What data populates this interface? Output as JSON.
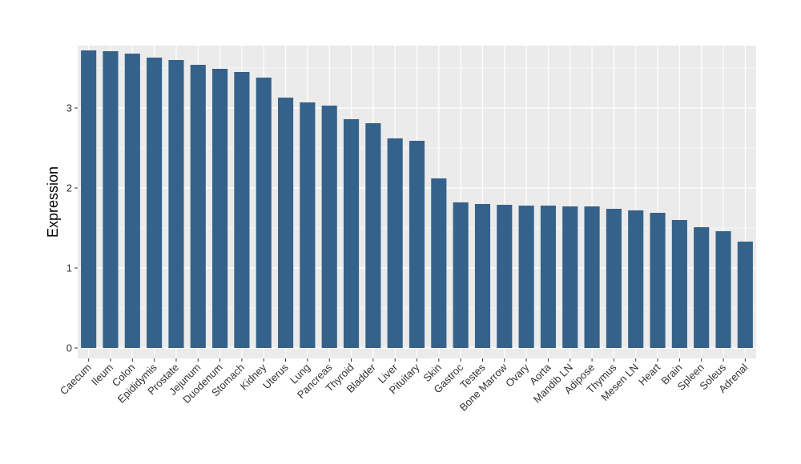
{
  "chart_data": {
    "type": "bar",
    "title": "",
    "xlabel": "",
    "ylabel": "Expression",
    "ylim": [
      -0.13,
      3.78
    ],
    "yticks": [
      0,
      1,
      2,
      3
    ],
    "grid": true,
    "bar_color": "#35628A",
    "panel_color": "#EBEBEB",
    "grid_color": "#FFFFFF",
    "categories": [
      "Caecum",
      "Ileum",
      "Colon",
      "Epididymis",
      "Prostate",
      "Jejunum",
      "Duodenum",
      "Stomach",
      "Kidney",
      "Uterus",
      "Lung",
      "Pancreas",
      "Thyroid",
      "Bladder",
      "Liver",
      "Pituitary",
      "Skin",
      "Gastroc",
      "Testes",
      "Bone Marrow",
      "Ovary",
      "Aorta",
      "Mandib LN",
      "Adipose",
      "Thymus",
      "Mesen LN",
      "Heart",
      "Brain",
      "Spleen",
      "Soleus",
      "Adrenal"
    ],
    "values": [
      3.72,
      3.71,
      3.68,
      3.63,
      3.6,
      3.54,
      3.49,
      3.45,
      3.38,
      3.13,
      3.07,
      3.03,
      2.86,
      2.81,
      2.62,
      2.59,
      2.12,
      1.82,
      1.8,
      1.79,
      1.78,
      1.78,
      1.77,
      1.77,
      1.74,
      1.72,
      1.69,
      1.6,
      1.51,
      1.46,
      1.33
    ]
  }
}
